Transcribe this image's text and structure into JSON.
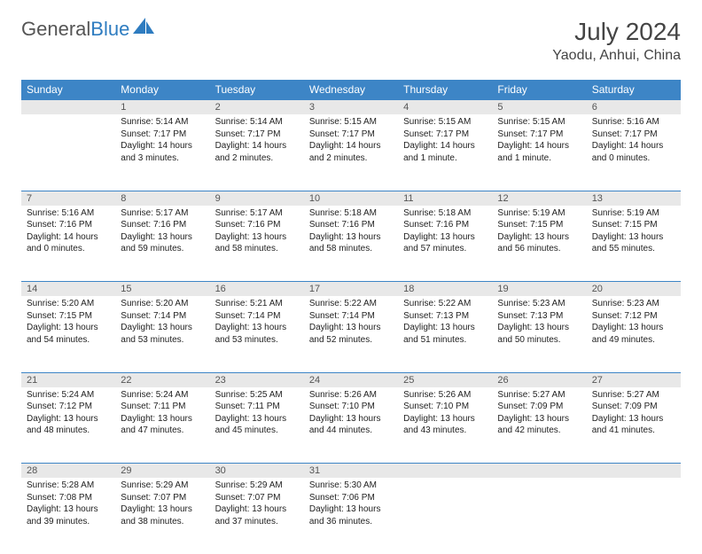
{
  "logo": {
    "text1": "General",
    "text2": "Blue"
  },
  "title": "July 2024",
  "location": "Yaodu, Anhui, China",
  "colors": {
    "header_bg": "#3d85c6",
    "header_text": "#ffffff",
    "daynum_bg": "#e8e8e8",
    "border": "#3d85c6",
    "body_text": "#222222",
    "title_text": "#444444"
  },
  "weekdays": [
    "Sunday",
    "Monday",
    "Tuesday",
    "Wednesday",
    "Thursday",
    "Friday",
    "Saturday"
  ],
  "weeks": [
    {
      "nums": [
        "",
        "1",
        "2",
        "3",
        "4",
        "5",
        "6"
      ],
      "cells": [
        null,
        {
          "sunrise": "Sunrise: 5:14 AM",
          "sunset": "Sunset: 7:17 PM",
          "daylight": "Daylight: 14 hours and 3 minutes."
        },
        {
          "sunrise": "Sunrise: 5:14 AM",
          "sunset": "Sunset: 7:17 PM",
          "daylight": "Daylight: 14 hours and 2 minutes."
        },
        {
          "sunrise": "Sunrise: 5:15 AM",
          "sunset": "Sunset: 7:17 PM",
          "daylight": "Daylight: 14 hours and 2 minutes."
        },
        {
          "sunrise": "Sunrise: 5:15 AM",
          "sunset": "Sunset: 7:17 PM",
          "daylight": "Daylight: 14 hours and 1 minute."
        },
        {
          "sunrise": "Sunrise: 5:15 AM",
          "sunset": "Sunset: 7:17 PM",
          "daylight": "Daylight: 14 hours and 1 minute."
        },
        {
          "sunrise": "Sunrise: 5:16 AM",
          "sunset": "Sunset: 7:17 PM",
          "daylight": "Daylight: 14 hours and 0 minutes."
        }
      ]
    },
    {
      "nums": [
        "7",
        "8",
        "9",
        "10",
        "11",
        "12",
        "13"
      ],
      "cells": [
        {
          "sunrise": "Sunrise: 5:16 AM",
          "sunset": "Sunset: 7:16 PM",
          "daylight": "Daylight: 14 hours and 0 minutes."
        },
        {
          "sunrise": "Sunrise: 5:17 AM",
          "sunset": "Sunset: 7:16 PM",
          "daylight": "Daylight: 13 hours and 59 minutes."
        },
        {
          "sunrise": "Sunrise: 5:17 AM",
          "sunset": "Sunset: 7:16 PM",
          "daylight": "Daylight: 13 hours and 58 minutes."
        },
        {
          "sunrise": "Sunrise: 5:18 AM",
          "sunset": "Sunset: 7:16 PM",
          "daylight": "Daylight: 13 hours and 58 minutes."
        },
        {
          "sunrise": "Sunrise: 5:18 AM",
          "sunset": "Sunset: 7:16 PM",
          "daylight": "Daylight: 13 hours and 57 minutes."
        },
        {
          "sunrise": "Sunrise: 5:19 AM",
          "sunset": "Sunset: 7:15 PM",
          "daylight": "Daylight: 13 hours and 56 minutes."
        },
        {
          "sunrise": "Sunrise: 5:19 AM",
          "sunset": "Sunset: 7:15 PM",
          "daylight": "Daylight: 13 hours and 55 minutes."
        }
      ]
    },
    {
      "nums": [
        "14",
        "15",
        "16",
        "17",
        "18",
        "19",
        "20"
      ],
      "cells": [
        {
          "sunrise": "Sunrise: 5:20 AM",
          "sunset": "Sunset: 7:15 PM",
          "daylight": "Daylight: 13 hours and 54 minutes."
        },
        {
          "sunrise": "Sunrise: 5:20 AM",
          "sunset": "Sunset: 7:14 PM",
          "daylight": "Daylight: 13 hours and 53 minutes."
        },
        {
          "sunrise": "Sunrise: 5:21 AM",
          "sunset": "Sunset: 7:14 PM",
          "daylight": "Daylight: 13 hours and 53 minutes."
        },
        {
          "sunrise": "Sunrise: 5:22 AM",
          "sunset": "Sunset: 7:14 PM",
          "daylight": "Daylight: 13 hours and 52 minutes."
        },
        {
          "sunrise": "Sunrise: 5:22 AM",
          "sunset": "Sunset: 7:13 PM",
          "daylight": "Daylight: 13 hours and 51 minutes."
        },
        {
          "sunrise": "Sunrise: 5:23 AM",
          "sunset": "Sunset: 7:13 PM",
          "daylight": "Daylight: 13 hours and 50 minutes."
        },
        {
          "sunrise": "Sunrise: 5:23 AM",
          "sunset": "Sunset: 7:12 PM",
          "daylight": "Daylight: 13 hours and 49 minutes."
        }
      ]
    },
    {
      "nums": [
        "21",
        "22",
        "23",
        "24",
        "25",
        "26",
        "27"
      ],
      "cells": [
        {
          "sunrise": "Sunrise: 5:24 AM",
          "sunset": "Sunset: 7:12 PM",
          "daylight": "Daylight: 13 hours and 48 minutes."
        },
        {
          "sunrise": "Sunrise: 5:24 AM",
          "sunset": "Sunset: 7:11 PM",
          "daylight": "Daylight: 13 hours and 47 minutes."
        },
        {
          "sunrise": "Sunrise: 5:25 AM",
          "sunset": "Sunset: 7:11 PM",
          "daylight": "Daylight: 13 hours and 45 minutes."
        },
        {
          "sunrise": "Sunrise: 5:26 AM",
          "sunset": "Sunset: 7:10 PM",
          "daylight": "Daylight: 13 hours and 44 minutes."
        },
        {
          "sunrise": "Sunrise: 5:26 AM",
          "sunset": "Sunset: 7:10 PM",
          "daylight": "Daylight: 13 hours and 43 minutes."
        },
        {
          "sunrise": "Sunrise: 5:27 AM",
          "sunset": "Sunset: 7:09 PM",
          "daylight": "Daylight: 13 hours and 42 minutes."
        },
        {
          "sunrise": "Sunrise: 5:27 AM",
          "sunset": "Sunset: 7:09 PM",
          "daylight": "Daylight: 13 hours and 41 minutes."
        }
      ]
    },
    {
      "nums": [
        "28",
        "29",
        "30",
        "31",
        "",
        "",
        ""
      ],
      "cells": [
        {
          "sunrise": "Sunrise: 5:28 AM",
          "sunset": "Sunset: 7:08 PM",
          "daylight": "Daylight: 13 hours and 39 minutes."
        },
        {
          "sunrise": "Sunrise: 5:29 AM",
          "sunset": "Sunset: 7:07 PM",
          "daylight": "Daylight: 13 hours and 38 minutes."
        },
        {
          "sunrise": "Sunrise: 5:29 AM",
          "sunset": "Sunset: 7:07 PM",
          "daylight": "Daylight: 13 hours and 37 minutes."
        },
        {
          "sunrise": "Sunrise: 5:30 AM",
          "sunset": "Sunset: 7:06 PM",
          "daylight": "Daylight: 13 hours and 36 minutes."
        },
        null,
        null,
        null
      ]
    }
  ]
}
